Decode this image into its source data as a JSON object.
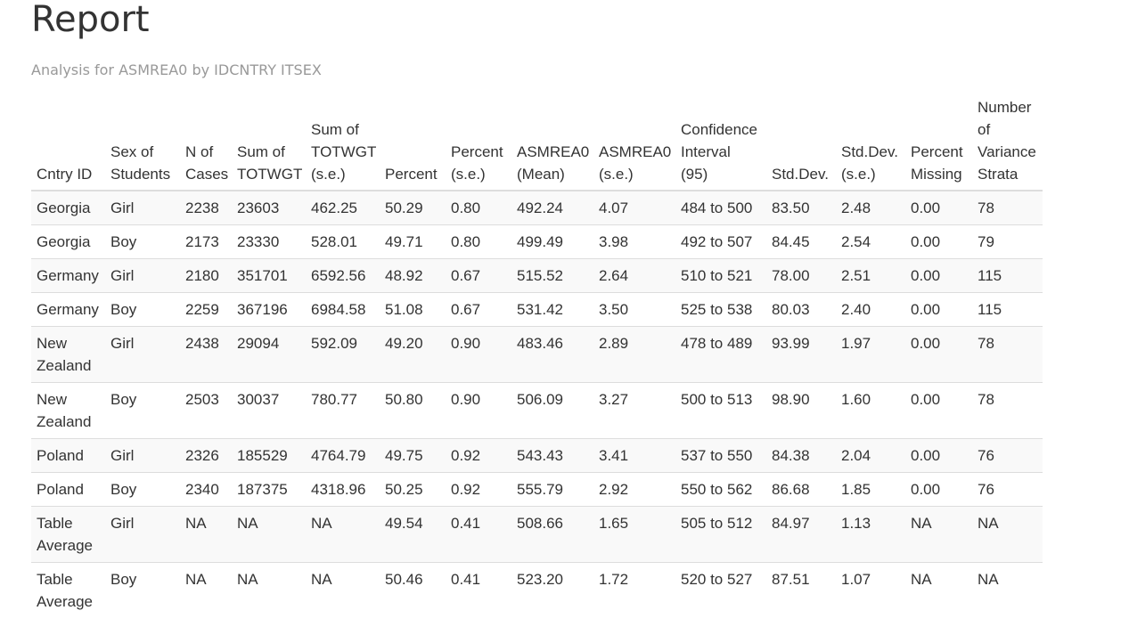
{
  "header": {
    "title": "Report",
    "subtitle": "Analysis for ASMREA0 by IDCNTRY ITSEX"
  },
  "table": {
    "columns": [
      "Cntry ID",
      "Sex of Students",
      "N of Cases",
      "Sum of TOTWGT",
      "Sum of TOTWGT (s.e.)",
      "Percent",
      "Percent (s.e.)",
      "ASMREA0 (Mean)",
      "ASMREA0 (s.e.)",
      "Confidence Interval (95)",
      "Std.Dev.",
      "Std.Dev. (s.e.)",
      "Percent Missing",
      "Number of Variance Strata"
    ],
    "rows": [
      [
        "Georgia",
        "Girl",
        "2238",
        "23603",
        "462.25",
        "50.29",
        "0.80",
        "492.24",
        "4.07",
        "484 to 500",
        "83.50",
        "2.48",
        "0.00",
        "78"
      ],
      [
        "Georgia",
        "Boy",
        "2173",
        "23330",
        "528.01",
        "49.71",
        "0.80",
        "499.49",
        "3.98",
        "492 to 507",
        "84.45",
        "2.54",
        "0.00",
        "79"
      ],
      [
        "Germany",
        "Girl",
        "2180",
        "351701",
        "6592.56",
        "48.92",
        "0.67",
        "515.52",
        "2.64",
        "510 to 521",
        "78.00",
        "2.51",
        "0.00",
        "115"
      ],
      [
        "Germany",
        "Boy",
        "2259",
        "367196",
        "6984.58",
        "51.08",
        "0.67",
        "531.42",
        "3.50",
        "525 to 538",
        "80.03",
        "2.40",
        "0.00",
        "115"
      ],
      [
        "New Zealand",
        "Girl",
        "2438",
        "29094",
        "592.09",
        "49.20",
        "0.90",
        "483.46",
        "2.89",
        "478 to 489",
        "93.99",
        "1.97",
        "0.00",
        "78"
      ],
      [
        "New Zealand",
        "Boy",
        "2503",
        "30037",
        "780.77",
        "50.80",
        "0.90",
        "506.09",
        "3.27",
        "500 to 513",
        "98.90",
        "1.60",
        "0.00",
        "78"
      ],
      [
        "Poland",
        "Girl",
        "2326",
        "185529",
        "4764.79",
        "49.75",
        "0.92",
        "543.43",
        "3.41",
        "537 to 550",
        "84.38",
        "2.04",
        "0.00",
        "76"
      ],
      [
        "Poland",
        "Boy",
        "2340",
        "187375",
        "4318.96",
        "50.25",
        "0.92",
        "555.79",
        "2.92",
        "550 to 562",
        "86.68",
        "1.85",
        "0.00",
        "76"
      ],
      [
        "Table Average",
        "Girl",
        "NA",
        "NA",
        "NA",
        "49.54",
        "0.41",
        "508.66",
        "1.65",
        "505 to 512",
        "84.97",
        "1.13",
        "NA",
        "NA"
      ],
      [
        "Table Average",
        "Boy",
        "NA",
        "NA",
        "NA",
        "50.46",
        "0.41",
        "523.20",
        "1.72",
        "520 to 527",
        "87.51",
        "1.07",
        "NA",
        "NA"
      ]
    ]
  }
}
